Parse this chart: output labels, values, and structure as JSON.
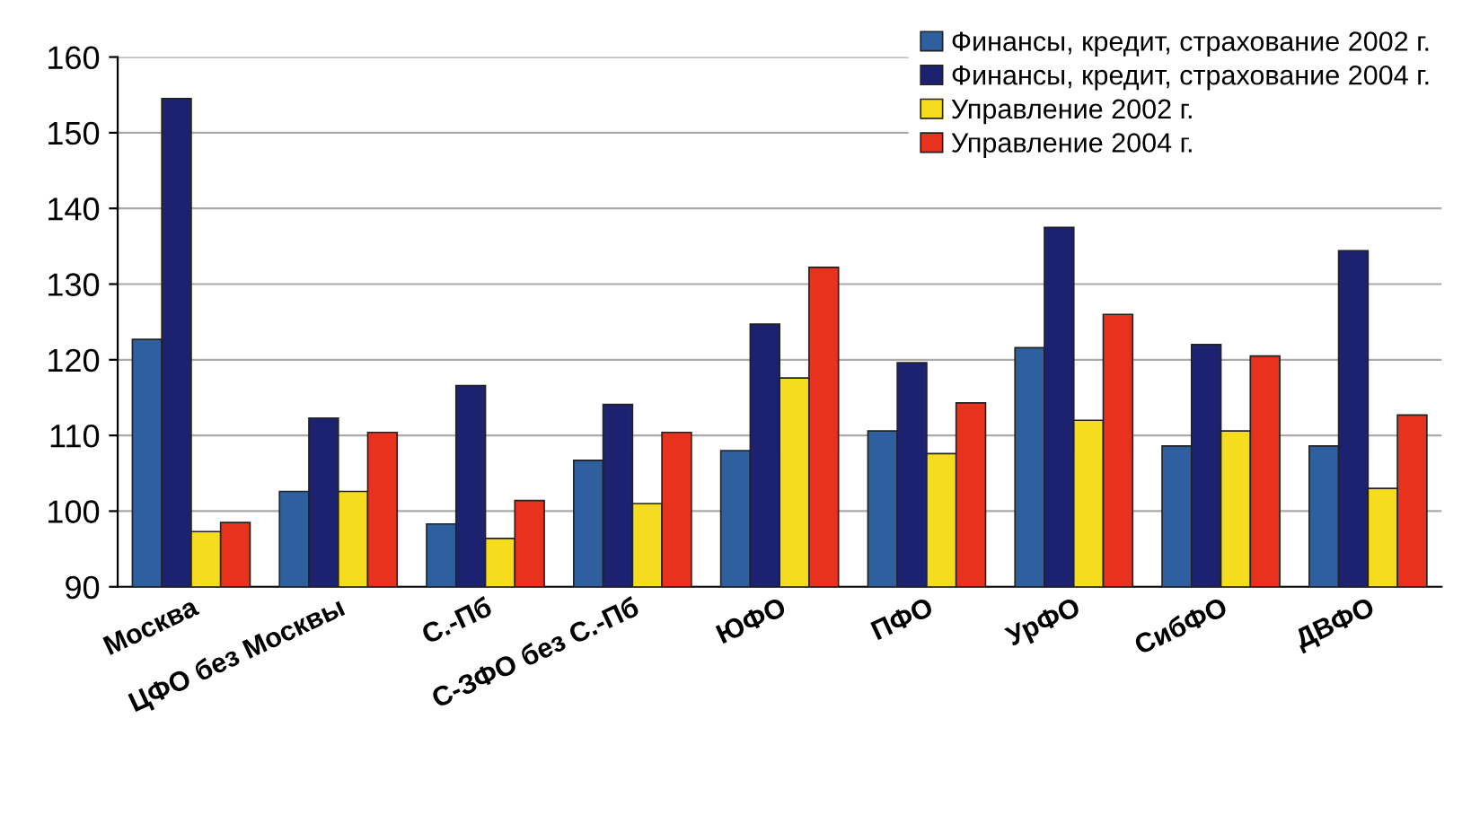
{
  "chart_data": {
    "type": "bar",
    "categories": [
      "Москва",
      "ЦФО без Москвы",
      "С.-Пб",
      "С-ЗФО без С.-Пб",
      "ЮФО",
      "ПФО",
      "УрФО",
      "СибФО",
      "ДВФО"
    ],
    "series": [
      {
        "name": "Финансы, кредит, страхование 2002 г.",
        "color": "#2e5f9e",
        "values": [
          122.7,
          102.6,
          98.3,
          106.7,
          108.0,
          110.6,
          121.6,
          108.6,
          108.6
        ]
      },
      {
        "name": "Финансы, кредит, страхование 2004 г.",
        "color": "#1c2270",
        "values": [
          154.5,
          112.3,
          116.6,
          114.1,
          124.7,
          119.6,
          137.5,
          122.0,
          134.4
        ]
      },
      {
        "name": "Управление 2002 г.",
        "color": "#f5dc1e",
        "values": [
          97.3,
          102.6,
          96.4,
          101.0,
          117.6,
          107.6,
          112.0,
          110.6,
          103.0
        ]
      },
      {
        "name": "Управление 2004 г.",
        "color": "#e8321e",
        "values": [
          98.5,
          110.4,
          101.4,
          110.4,
          132.2,
          114.3,
          126.0,
          120.5,
          112.7
        ]
      }
    ],
    "ylim": [
      90,
      160
    ],
    "yticks": [
      90,
      100,
      110,
      120,
      130,
      140,
      150,
      160
    ],
    "grid": "y",
    "legend": "top right"
  }
}
